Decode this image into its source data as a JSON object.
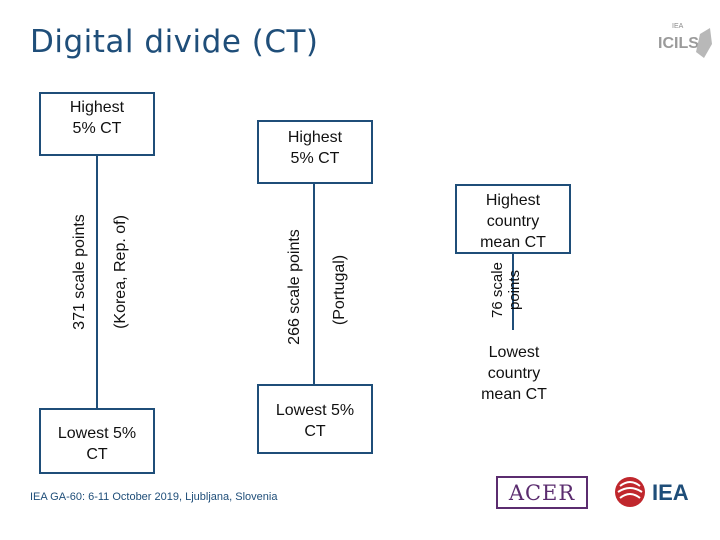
{
  "slide": {
    "title": "Digital divide (CT)",
    "footer": "IEA GA-60: 6-11 October 2019, Ljubljana, Slovenia"
  },
  "diagram": {
    "korea": {
      "top": "Highest 5% CT",
      "bottom": "Lowest 5% CT",
      "range": "371 scale points",
      "country": "(Korea, Rep. of)"
    },
    "portugal": {
      "top": "Highest 5% CT",
      "bottom": "Lowest 5% CT",
      "range": "266 scale points",
      "country": "(Portugal)"
    },
    "country_means": {
      "top": "Highest country mean CT",
      "bottom": "Lowest country mean CT",
      "range": "76 scale points"
    }
  },
  "logos": {
    "top_right": "ICILS",
    "top_right_small": "IEA",
    "acer": "ACER",
    "iea": "IEA"
  },
  "colors": {
    "accent": "#1f4e79",
    "iea_red": "#c0272d",
    "acer_purple": "#5b2c6f"
  }
}
